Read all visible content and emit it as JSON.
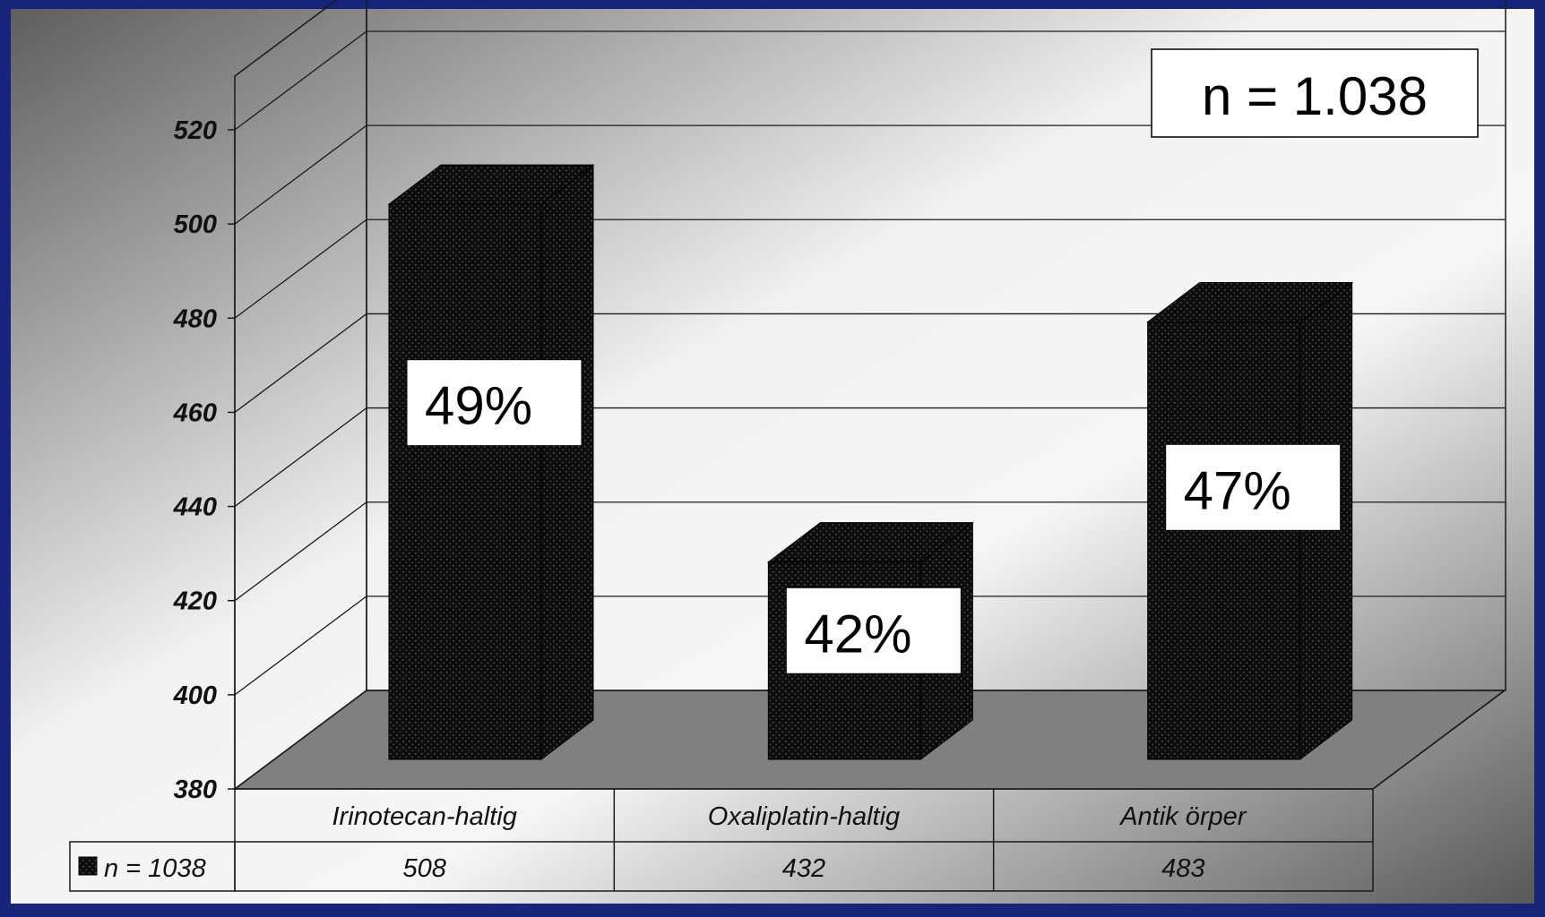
{
  "chart_data": {
    "type": "bar",
    "categories": [
      "Irinotecan-haltig",
      "Oxaliplatin-haltig",
      "Antik örper"
    ],
    "series": [
      {
        "name": "n = 1038",
        "values": [
          508,
          432,
          483
        ]
      }
    ],
    "bar_labels": [
      "49%",
      "42%",
      "47%"
    ],
    "y_ticks": [
      "380",
      "400",
      "420",
      "440",
      "460",
      "480",
      "500",
      "520"
    ],
    "ylim": [
      380,
      520
    ],
    "annotation": "n = 1.038",
    "title": "",
    "xlabel": "",
    "ylabel": "",
    "style": "3d-column",
    "grid": true,
    "legend": "data-table-left",
    "colors": {
      "bar": "#0d0d0d",
      "bar_dots": "#5a5a5a",
      "floor": "#808080",
      "border": "#16257a",
      "grid": "#1a1a1a"
    }
  }
}
